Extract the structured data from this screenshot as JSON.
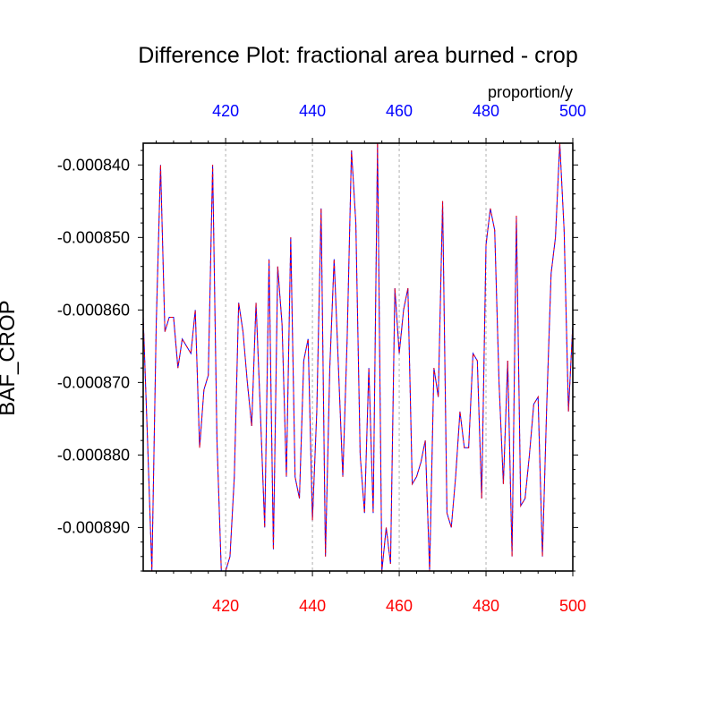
{
  "chart_data": {
    "type": "line",
    "title": "Difference Plot: fractional area burned - crop",
    "units_label": "proportion/y",
    "ylabel": "BAF_CROP",
    "xlabel": "",
    "xlim": [
      401,
      500
    ],
    "ylim": [
      -0.000896,
      -0.000837
    ],
    "x_ticks": [
      420,
      440,
      460,
      480,
      500
    ],
    "y_ticks": [
      -0.00084,
      -0.00085,
      -0.00086,
      -0.00087,
      -0.00088,
      -0.00089
    ],
    "y_tick_labels": [
      "-0.000840",
      "-0.000850",
      "-0.000860",
      "-0.000870",
      "-0.000880",
      "-0.000890"
    ],
    "grid": "vertical dashed at x ticks",
    "colors": {
      "top_axis_labels": "#0000ff",
      "bottom_axis_labels": "#ff0000",
      "series_a": "#0000ff",
      "series_b": "#ff0000",
      "grid": "#b0b0b0"
    },
    "series": [
      {
        "x": [
          401,
          402,
          403,
          404,
          405,
          406,
          407,
          408,
          409,
          410,
          411,
          412,
          413,
          414,
          415,
          416,
          417,
          418,
          419,
          420,
          421,
          422,
          423,
          424,
          425,
          426,
          427,
          428,
          429,
          430,
          431,
          432,
          433,
          434,
          435,
          436,
          437,
          438,
          439,
          440,
          441,
          442,
          443,
          444,
          445,
          446,
          447,
          448,
          449,
          450,
          451,
          452,
          453,
          454,
          455,
          456,
          457,
          458,
          459,
          460,
          461,
          462,
          463,
          464,
          465,
          466,
          467,
          468,
          469,
          470,
          471,
          472,
          473,
          474,
          475,
          476,
          477,
          478,
          479,
          480,
          481,
          482,
          483,
          484,
          485,
          486,
          487,
          488,
          489,
          490,
          491,
          492,
          493,
          494,
          495,
          496,
          497,
          498,
          499,
          500
        ],
        "values": [
          -0.000861,
          -0.000878,
          -0.000896,
          -0.000862,
          -0.00084,
          -0.000863,
          -0.000861,
          -0.000861,
          -0.000868,
          -0.000864,
          -0.000865,
          -0.000866,
          -0.00086,
          -0.000879,
          -0.000871,
          -0.000869,
          -0.00084,
          -0.000878,
          -0.000896,
          -0.000896,
          -0.000894,
          -0.000883,
          -0.000859,
          -0.000863,
          -0.00087,
          -0.000876,
          -0.000859,
          -0.000874,
          -0.00089,
          -0.000853,
          -0.000893,
          -0.000854,
          -0.000862,
          -0.000883,
          -0.00085,
          -0.000883,
          -0.000886,
          -0.000867,
          -0.000864,
          -0.000889,
          -0.000874,
          -0.000846,
          -0.000894,
          -0.000868,
          -0.000853,
          -0.000868,
          -0.000883,
          -0.000864,
          -0.000838,
          -0.000848,
          -0.00088,
          -0.000888,
          -0.000868,
          -0.000888,
          -0.000837,
          -0.000896,
          -0.00089,
          -0.000895,
          -0.000857,
          -0.000866,
          -0.00086,
          -0.000857,
          -0.000884,
          -0.000883,
          -0.000881,
          -0.000878,
          -0.000896,
          -0.000868,
          -0.000872,
          -0.000845,
          -0.000888,
          -0.00089,
          -0.000883,
          -0.000874,
          -0.000879,
          -0.000879,
          -0.000866,
          -0.000867,
          -0.000886,
          -0.000851,
          -0.000846,
          -0.000849,
          -0.00087,
          -0.000884,
          -0.000867,
          -0.000894,
          -0.000847,
          -0.000887,
          -0.000886,
          -0.00088,
          -0.000873,
          -0.000872,
          -0.000894,
          -0.000873,
          -0.000855,
          -0.00085,
          -0.000837,
          -0.000849,
          -0.000874,
          -0.000862
        ]
      },
      {
        "x": [
          401,
          402,
          403,
          404,
          405,
          406,
          407,
          408,
          409,
          410,
          411,
          412,
          413,
          414,
          415,
          416,
          417,
          418,
          419,
          420,
          421,
          422,
          423,
          424,
          425,
          426,
          427,
          428,
          429,
          430,
          431,
          432,
          433,
          434,
          435,
          436,
          437,
          438,
          439,
          440,
          441,
          442,
          443,
          444,
          445,
          446,
          447,
          448,
          449,
          450,
          451,
          452,
          453,
          454,
          455,
          456,
          457,
          458,
          459,
          460,
          461,
          462,
          463,
          464,
          465,
          466,
          467,
          468,
          469,
          470,
          471,
          472,
          473,
          474,
          475,
          476,
          477,
          478,
          479,
          480,
          481,
          482,
          483,
          484,
          485,
          486,
          487,
          488,
          489,
          490,
          491,
          492,
          493,
          494,
          495,
          496,
          497,
          498,
          499,
          500
        ],
        "values": [
          -0.000861,
          -0.000878,
          -0.000896,
          -0.000862,
          -0.00084,
          -0.000863,
          -0.000861,
          -0.000861,
          -0.000868,
          -0.000864,
          -0.000865,
          -0.000866,
          -0.00086,
          -0.000879,
          -0.000871,
          -0.000869,
          -0.00084,
          -0.000878,
          -0.000896,
          -0.000896,
          -0.000894,
          -0.000883,
          -0.000859,
          -0.000863,
          -0.00087,
          -0.000876,
          -0.000859,
          -0.000874,
          -0.00089,
          -0.000853,
          -0.000893,
          -0.000854,
          -0.000862,
          -0.000883,
          -0.00085,
          -0.000883,
          -0.000886,
          -0.000867,
          -0.000864,
          -0.000889,
          -0.000874,
          -0.000846,
          -0.000894,
          -0.000868,
          -0.000853,
          -0.000868,
          -0.000883,
          -0.000864,
          -0.000838,
          -0.000848,
          -0.00088,
          -0.000888,
          -0.000868,
          -0.000888,
          -0.000837,
          -0.000896,
          -0.00089,
          -0.000895,
          -0.000857,
          -0.000866,
          -0.00086,
          -0.000857,
          -0.000884,
          -0.000883,
          -0.000881,
          -0.000878,
          -0.000896,
          -0.000868,
          -0.000872,
          -0.000845,
          -0.000888,
          -0.00089,
          -0.000883,
          -0.000874,
          -0.000879,
          -0.000879,
          -0.000866,
          -0.000867,
          -0.000886,
          -0.000851,
          -0.000846,
          -0.000849,
          -0.00087,
          -0.000884,
          -0.000867,
          -0.000894,
          -0.000847,
          -0.000887,
          -0.000886,
          -0.00088,
          -0.000873,
          -0.000872,
          -0.000894,
          -0.000873,
          -0.000855,
          -0.00085,
          -0.000837,
          -0.000849,
          -0.000874,
          -0.000862
        ]
      }
    ]
  }
}
